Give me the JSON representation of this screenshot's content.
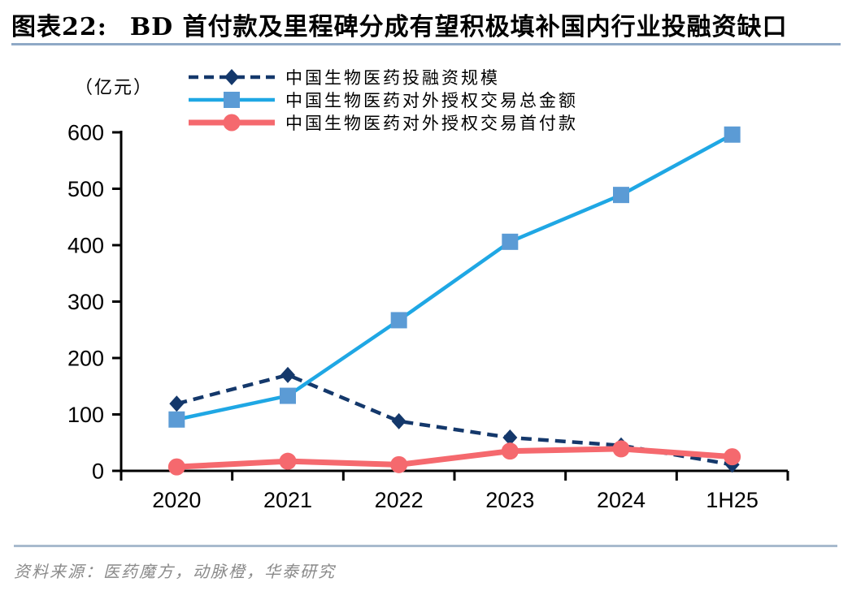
{
  "header": {
    "figure_label": "图表22:",
    "title": "BD 首付款及里程碑分成有望积极填补国内行业投融资缺口"
  },
  "chart_data": {
    "type": "line",
    "title": "BD 首付款及里程碑分成有望积极填补国内行业投融资缺口",
    "unit_label": "（亿元）",
    "categories": [
      "2020",
      "2021",
      "2022",
      "2023",
      "2024",
      "1H25"
    ],
    "xlabel": "",
    "ylabel": "（亿元）",
    "ylim": [
      0,
      600
    ],
    "yticks": [
      0,
      100,
      200,
      300,
      400,
      500,
      600
    ],
    "grid": false,
    "legend_position": "top-left",
    "series": [
      {
        "name": "中国生物医药投融资规模",
        "values": [
          119,
          170,
          88,
          59,
          45,
          11
        ],
        "color": "#14386B",
        "marker": "diamond",
        "marker_color": "#14386B",
        "line_style": "dashed"
      },
      {
        "name": "中国生物医药对外授权交易总金额",
        "values": [
          91,
          133,
          267,
          406,
          489,
          596
        ],
        "color": "#1FA7E4",
        "marker": "square",
        "marker_color": "#5B9BD5",
        "line_style": "solid"
      },
      {
        "name": "中国生物医药对外授权交易首付款",
        "values": [
          7,
          17,
          11,
          35,
          39,
          25
        ],
        "color": "#F5696E",
        "marker": "circle",
        "marker_color": "#F5696E",
        "line_style": "solid"
      }
    ]
  },
  "footer": {
    "source": "资料来源：医药魔方，动脉橙，华泰研究"
  },
  "colors": {
    "axis": "#000000",
    "title_rule": "#8FA9C6",
    "footer_rule": "#A8BACD",
    "source_text": "#8A8A8A"
  }
}
